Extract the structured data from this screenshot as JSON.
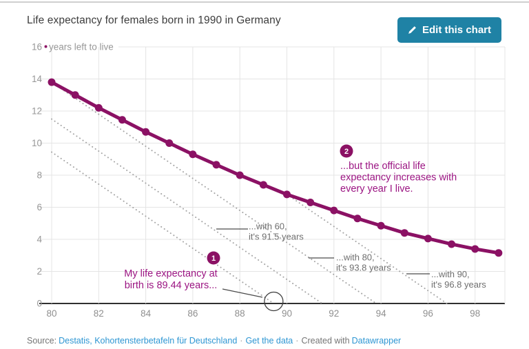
{
  "header": {
    "edit_button_label": "Edit this chart",
    "edit_button_color": "#1f82a5"
  },
  "chart_data": {
    "type": "line",
    "title": "Life expectancy for females born in 1990 in Germany",
    "unit_label": "years left to live",
    "xlim": [
      80,
      99.3
    ],
    "ylim": [
      0,
      16
    ],
    "grid": true,
    "x_ticks": [
      80,
      82,
      84,
      86,
      88,
      90,
      92,
      94,
      96,
      98
    ],
    "y_ticks": [
      0,
      2,
      4,
      6,
      8,
      10,
      12,
      14,
      16
    ],
    "x": [
      80,
      81,
      82,
      83,
      84,
      85,
      86,
      87,
      88,
      89,
      90,
      91,
      92,
      93,
      94,
      95,
      96,
      97,
      98,
      99
    ],
    "series": [
      {
        "color": "#8b1164",
        "values": [
          13.8,
          13.0,
          12.2,
          11.45,
          10.7,
          10.0,
          9.3,
          8.65,
          8.0,
          7.4,
          6.8,
          6.3,
          5.8,
          5.3,
          4.85,
          4.4,
          4.05,
          3.7,
          3.4,
          3.15
        ]
      }
    ],
    "reference_lines": [
      {
        "label": "life expectancy at birth: 89.44",
        "from": [
          80,
          9.44
        ],
        "to": [
          89.44,
          0
        ]
      },
      {
        "label": "with 60: 91.5",
        "from": [
          80,
          11.5
        ],
        "to": [
          91.5,
          0
        ]
      },
      {
        "label": "with 80: 93.8",
        "from": [
          80,
          13.8
        ],
        "to": [
          93.8,
          0
        ]
      },
      {
        "label": "with 90: 96.8",
        "from": [
          90,
          6.8
        ],
        "to": [
          96.8,
          0
        ]
      }
    ],
    "annotations": [
      {
        "badge": "1",
        "color": "#9b1482",
        "lines": [
          "My life expectancy at",
          "birth is 89.44 years..."
        ]
      },
      {
        "badge": "2",
        "color": "#9b1482",
        "lines": [
          "...but the official life",
          "expectancy increases with",
          "every year I live."
        ]
      },
      {
        "color": "#6e6e6e",
        "lines": [
          "...with 60,",
          "it's 91.5 years"
        ]
      },
      {
        "color": "#6e6e6e",
        "lines": [
          "...with 80,",
          "it's 93.8 years"
        ]
      },
      {
        "color": "#6e6e6e",
        "lines": [
          "...with 90,",
          "it's 96.8 years"
        ]
      }
    ]
  },
  "footer": {
    "source_prefix": "Source:",
    "source_link": "Destatis, Kohortensterbetafeln für Deutschland",
    "separator": "·",
    "get_data_label": "Get the data",
    "created_with": "Created with",
    "brand_link": "Datawrapper"
  }
}
